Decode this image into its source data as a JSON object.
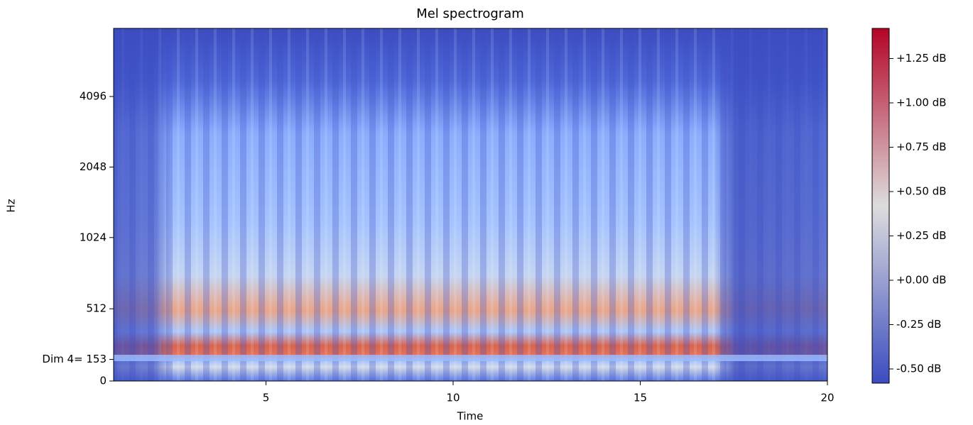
{
  "chart_data": {
    "type": "spectrogram",
    "title": "Mel spectrogram",
    "xlabel": "Time",
    "ylabel": "Hz",
    "xlim": [
      0.93,
      20
    ],
    "xticks": [
      5,
      10,
      15,
      20
    ],
    "ylim": [
      0,
      8000
    ],
    "yscale": "symlog",
    "linthresh": 1000,
    "base": 2,
    "linscale": 1,
    "yticks": [
      0,
      {
        "value": 153,
        "label": "Dim 4= 153"
      },
      512,
      1024,
      2048,
      4096
    ],
    "colorbar": {
      "clim": [
        -0.58,
        1.42
      ],
      "colors": [
        "#3b4cc0",
        "#dddddd",
        "#b40426"
      ],
      "ticks": [
        {
          "value": 1.25,
          "label": "+1.25 dB"
        },
        {
          "value": 1.0,
          "label": "+1.00 dB"
        },
        {
          "value": 0.75,
          "label": "+0.75 dB"
        },
        {
          "value": 0.5,
          "label": "+0.50 dB"
        },
        {
          "value": 0.25,
          "label": "+0.25 dB"
        },
        {
          "value": 0.0,
          "label": "+0.00 dB"
        },
        {
          "value": -0.25,
          "label": "-0.25 dB"
        },
        {
          "value": -0.5,
          "label": "-0.50 dB"
        }
      ]
    }
  }
}
